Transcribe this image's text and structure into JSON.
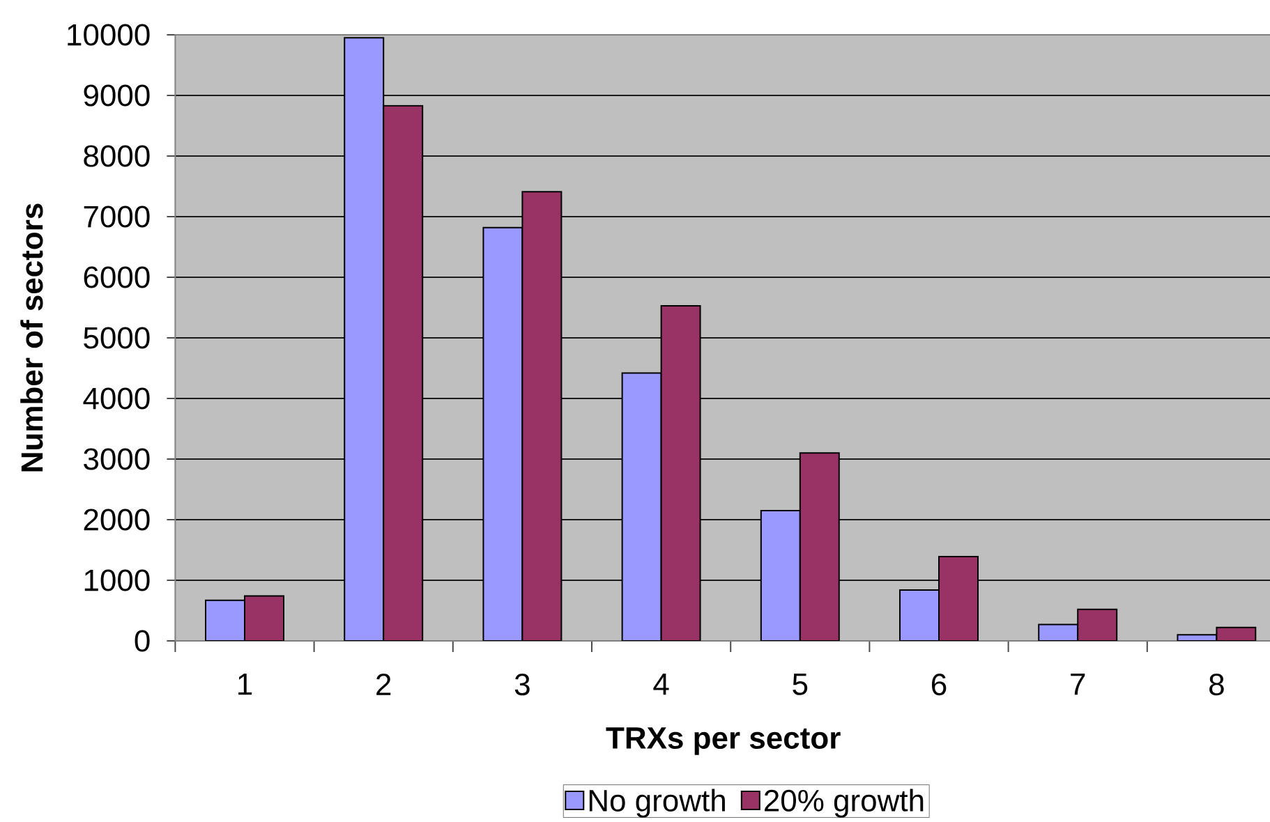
{
  "chart_data": {
    "type": "bar",
    "xlabel": "TRXs per sector",
    "ylabel": "Number of sectors",
    "categories": [
      "1",
      "2",
      "3",
      "4",
      "5",
      "6",
      "7",
      "8"
    ],
    "series": [
      {
        "name": "No growth",
        "color": "#9999ff",
        "values": [
          670,
          9950,
          6820,
          4420,
          2150,
          840,
          270,
          100
        ]
      },
      {
        "name": "20% growth",
        "color": "#993366",
        "values": [
          740,
          8830,
          7410,
          5530,
          3100,
          1390,
          520,
          220
        ]
      }
    ],
    "ylim": [
      0,
      10000
    ],
    "yticks": [
      0,
      1000,
      2000,
      3000,
      4000,
      5000,
      6000,
      7000,
      8000,
      9000,
      10000
    ],
    "grid": "y",
    "legend": "bottom"
  }
}
